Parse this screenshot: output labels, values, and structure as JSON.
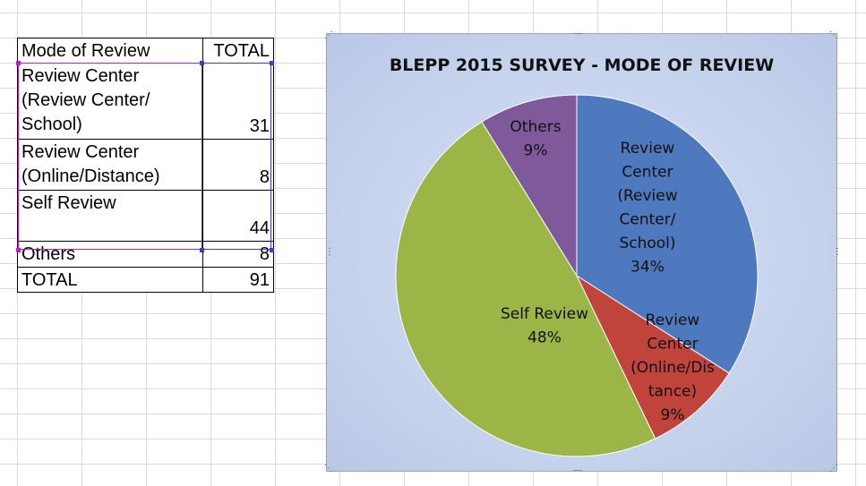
{
  "table": {
    "headers": [
      "Mode of Review",
      "TOTAL"
    ],
    "rows": [
      {
        "label_lines": [
          "Review Center",
          "(Review Center/",
          "School)"
        ],
        "value": "31"
      },
      {
        "label_lines": [
          "Review Center",
          "(Online/Distance)"
        ],
        "value": "8"
      },
      {
        "label_lines": [
          "Self Review"
        ],
        "value": "44"
      },
      {
        "label_lines": [
          "Others"
        ],
        "value": "8"
      }
    ],
    "total": {
      "label": "TOTAL",
      "value": "91"
    }
  },
  "chart_data": {
    "type": "pie",
    "title": "BLEPP 2015 SURVEY - MODE OF REVIEW",
    "slices": [
      {
        "label_lines": [
          "Review",
          "Center",
          "(Review",
          "Center/",
          "School)"
        ],
        "value": 31,
        "percent": "34%",
        "color": "#4f79be"
      },
      {
        "label_lines": [
          "Review",
          "Center",
          "(Online/Dis",
          "tance)"
        ],
        "value": 8,
        "percent": "9%",
        "color": "#c0433c"
      },
      {
        "label_lines": [
          "Self Review"
        ],
        "value": 44,
        "percent": "48%",
        "color": "#9bb547"
      },
      {
        "label_lines": [
          "Others"
        ],
        "value": 8,
        "percent": "9%",
        "color": "#7e5a9b"
      }
    ]
  }
}
